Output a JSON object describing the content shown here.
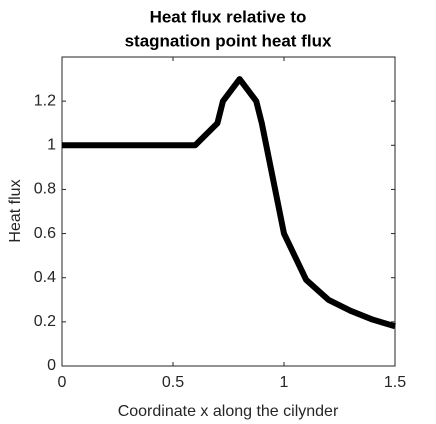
{
  "chart_data": {
    "type": "line",
    "title": [
      "Heat flux relative to",
      "stagnation point heat flux"
    ],
    "x_label": "Coordinate x along the cilynder",
    "y_label": "Heat flux",
    "x": [
      0,
      0.6,
      0.7,
      0.725,
      0.8,
      0.875,
      0.9,
      1.0,
      1.1,
      1.2,
      1.3,
      1.4,
      1.5
    ],
    "series": [
      {
        "color": "#000000",
        "values": [
          1,
          1,
          1.1,
          1.2,
          1.3,
          1.2,
          1.1,
          0.6,
          0.39,
          0.3,
          0.25,
          0.21,
          0.18
        ]
      }
    ],
    "xlim": [
      0,
      1.5
    ],
    "xticks": [
      0,
      0.5,
      1,
      1.5
    ],
    "ylim": [
      0,
      1.4
    ],
    "yticks": [
      0,
      0.2,
      0.4,
      0.6,
      0.8,
      1,
      1.2
    ],
    "grid": false
  }
}
